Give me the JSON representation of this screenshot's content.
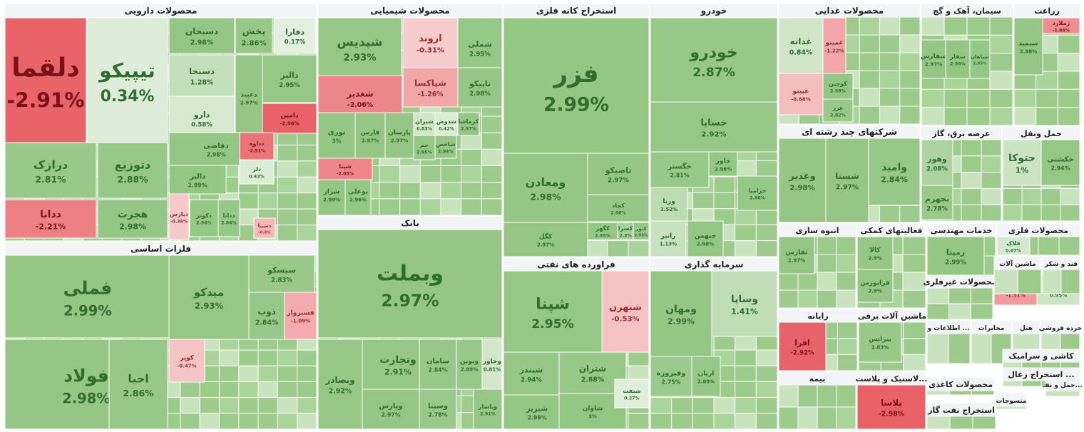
{
  "chart_data": {
    "type": "treemap",
    "metric": "daily change %",
    "sectors": [
      {
        "id": "pharma",
        "title": "محصولات دارویی",
        "items": [
          {
            "s": "دلقما",
            "v": -2.91
          },
          {
            "s": "تیپیکو",
            "v": 0.34
          },
          {
            "s": "دسبحان",
            "v": 2.98
          },
          {
            "s": "پخش",
            "v": 2.86
          },
          {
            "s": "دفارا",
            "v": 0.17
          },
          {
            "s": "دسبحا",
            "v": 1.28
          },
          {
            "s": "دارو",
            "v": 0.58
          },
          {
            "s": "دعبید",
            "v": 2.97
          },
          {
            "s": "دالبر",
            "v": 2.95
          },
          {
            "s": "دامین",
            "v": -2.96
          },
          {
            "s": "درازک",
            "v": 2.81
          },
          {
            "s": "دتوزیع",
            "v": 2.88
          },
          {
            "s": "دقاضی",
            "v": 2.98
          },
          {
            "s": "دالبر",
            "v": 2.99
          },
          {
            "s": "دداوه",
            "v": -2.51
          },
          {
            "s": "دجابر",
            "v": 2.93
          },
          {
            "s": "دکوثر",
            "v": 2.96
          },
          {
            "s": "ددانا",
            "v": -2.21
          },
          {
            "s": "هجرت",
            "v": 2.98
          },
          {
            "s": "دیارس",
            "v": -0.36
          },
          {
            "s": "دلر",
            "v": 0.43
          },
          {
            "s": "ددانا",
            "v": 2.86
          },
          {
            "s": "دسینا",
            "v": -0.8
          }
        ]
      },
      {
        "id": "chem",
        "title": "محصولات شیمیایی",
        "items": [
          {
            "s": "شپدیس",
            "v": 2.93
          },
          {
            "s": "اروند",
            "v": -0.31
          },
          {
            "s": "شملی",
            "v": 2.95
          },
          {
            "s": "شغدیر",
            "v": -2.06
          },
          {
            "s": "شپاکسا",
            "v": -1.26
          },
          {
            "s": "تاپیکو",
            "v": 2.98
          },
          {
            "s": "نوری",
            "v": 3
          },
          {
            "s": "فارس",
            "v": 2.97
          },
          {
            "s": "پارسان",
            "v": 2.97
          },
          {
            "s": "شیران",
            "v": 0.83
          },
          {
            "s": "شدوص",
            "v": 0.42
          },
          {
            "s": "کرماشا",
            "v": 2.97
          },
          {
            "s": "شراز",
            "v": 2.99
          },
          {
            "s": "بوعلی",
            "v": 2.96
          },
          {
            "s": "شاخص",
            "v": 2.94
          },
          {
            "s": "جم",
            "v": 2.95
          },
          {
            "s": "شپنا",
            "v": -2.05
          }
        ]
      },
      {
        "id": "bank",
        "title": "بانک",
        "items": [
          {
            "s": "وبملت",
            "v": 2.97
          },
          {
            "s": "وتجارت",
            "v": 2.91
          },
          {
            "s": "ساماں",
            "v": 2.84
          },
          {
            "s": "ونوین",
            "v": 2.89
          },
          {
            "s": "وخاور",
            "v": 0.81
          },
          {
            "s": "وبصادر",
            "v": 2.92
          },
          {
            "s": "وپارس",
            "v": 2.97
          },
          {
            "s": "وسینا",
            "v": 2.78
          },
          {
            "s": "وپاسار",
            "v": 2.91
          }
        ]
      },
      {
        "id": "metal",
        "title": "استخراج کانه فلزی",
        "items": [
          {
            "s": "فزر",
            "v": 2.99
          },
          {
            "s": "ومعادن",
            "v": 2.98
          },
          {
            "s": "تاصیکو",
            "v": 2.97
          },
          {
            "s": "کچاد",
            "v": 2.98
          },
          {
            "s": "کگل",
            "v": 2.97
          },
          {
            "s": "کگهر",
            "v": 2.95
          },
          {
            "s": "کسرا",
            "v": 2.3
          },
          {
            "s": "کنور",
            "v": 2.93
          }
        ]
      },
      {
        "id": "auto",
        "title": "خودرو",
        "items": [
          {
            "s": "خودرو",
            "v": 2.87
          },
          {
            "s": "خساپا",
            "v": 2.92
          },
          {
            "s": "خگستر",
            "v": 2.81
          },
          {
            "s": "خاور",
            "v": 2.96
          },
          {
            "s": "ورنا",
            "v": 1.52
          },
          {
            "s": "رانیر",
            "v": 1.13
          },
          {
            "s": "خبهمن",
            "v": 2.98
          },
          {
            "s": "خزامیا",
            "v": 2.96
          }
        ]
      },
      {
        "id": "food",
        "title": "محصولات غذایی",
        "items": [
          {
            "s": "غدانه",
            "v": 0.84
          },
          {
            "s": "غمینو",
            "v": -1.22
          },
          {
            "s": "غبینو",
            "v": -0.68
          },
          {
            "s": "کوچین",
            "v": 2.99
          },
          {
            "s": "غزر",
            "v": 2.82
          }
        ]
      },
      {
        "id": "cement",
        "title": "سیمان، آهک و گچ",
        "items": [
          {
            "s": "سفارس",
            "v": 2.97
          },
          {
            "s": "سفار",
            "v": 2.99
          },
          {
            "s": "سپاهان",
            "v": 2.95
          }
        ]
      },
      {
        "id": "agri",
        "title": "زراعت",
        "items": [
          {
            "s": "زملارد",
            "v": -1.86
          },
          {
            "s": "سیمید",
            "v": 2.98
          }
        ]
      },
      {
        "id": "multi",
        "title": "شرکتهای چند رشته ای",
        "items": [
          {
            "s": "وغدیر",
            "v": 2.98
          },
          {
            "s": "شستا",
            "v": 2.97
          },
          {
            "s": "وامید",
            "v": 2.84
          }
        ]
      },
      {
        "id": "power",
        "title": "عرضه برق، گاز",
        "items": [
          {
            "s": "وهور",
            "v": 2.08
          },
          {
            "s": "بجهرم",
            "v": 2.78
          }
        ]
      },
      {
        "id": "transport",
        "title": "حمل ونقل",
        "items": [
          {
            "s": "حتوکا",
            "v": 1
          },
          {
            "s": "حکشتی",
            "v": 2.94
          }
        ]
      },
      {
        "id": "basemetal",
        "title": "فلزات اساسی",
        "items": [
          {
            "s": "فملی",
            "v": 2.99
          },
          {
            "s": "میدکو",
            "v": 2.93
          },
          {
            "s": "سیسکو",
            "v": 2.83
          },
          {
            "s": "ذوب",
            "v": 2.84
          },
          {
            "s": "فسبزوار",
            "v": -1.09
          },
          {
            "s": "فولاد",
            "v": 2.98
          },
          {
            "s": "احیا",
            "v": 2.86
          },
          {
            "s": "کویر",
            "v": -0.47
          }
        ]
      },
      {
        "id": "refinery",
        "title": "فراورده های نفتی",
        "items": [
          {
            "s": "شپنا",
            "v": 2.95
          },
          {
            "s": "شبهرن",
            "v": -0.53
          },
          {
            "s": "شبندر",
            "v": 2.94
          },
          {
            "s": "شتران",
            "v": 2.88
          },
          {
            "s": "شبریز",
            "v": 2.99
          },
          {
            "s": "شاوان",
            "v": 3
          },
          {
            "s": "شنفت",
            "v": 0.27
          }
        ]
      },
      {
        "id": "invest",
        "title": "سرمایه گذاری",
        "items": [
          {
            "s": "ومهان",
            "v": 2.99
          },
          {
            "s": "وساپا",
            "v": 1.41
          },
          {
            "s": "وفیروزه",
            "v": 2.75
          },
          {
            "s": "اریان",
            "v": 2.89
          }
        ]
      },
      {
        "id": "mass",
        "title": "انبوه سازی",
        "items": [
          {
            "s": "ثفارس",
            "v": 2.97
          }
        ]
      },
      {
        "id": "support",
        "title": "فعالیتهای کمکی",
        "items": [
          {
            "s": "کالا",
            "v": 2.9
          },
          {
            "s": "فرابورس",
            "v": 2.9
          }
        ]
      },
      {
        "id": "eng",
        "title": "خدمات مهندسی",
        "items": [
          {
            "s": "رمپنا",
            "v": 2.99
          }
        ]
      },
      {
        "id": "it",
        "title": "رایانه",
        "items": [
          {
            "s": "افرا",
            "v": -2.92
          }
        ]
      },
      {
        "id": "electric",
        "title": "ماشین آلات برقی",
        "items": [
          {
            "s": "بترانس",
            "v": 2.83
          }
        ]
      },
      {
        "id": "insure",
        "title": "بیمه",
        "items": []
      },
      {
        "id": "plastic",
        "title": "لاستیک و پلاست...",
        "items": [
          {
            "s": "پلاسا",
            "v": -2.98
          }
        ]
      },
      {
        "id": "nonmetal",
        "title": "محصولات غیرفلزی",
        "items": [
          {
            "s": "کلاک",
            "v": -1.51
          },
          {
            "s": "کچار",
            "v": 0.95
          }
        ]
      },
      {
        "id": "machine",
        "title": "ماشین آلات",
        "items": []
      },
      {
        "id": "sugar",
        "title": "قند و شکر",
        "items": []
      },
      {
        "id": "metalprod",
        "title": "محصولات فلزی",
        "items": [
          {
            "s": "فلاک",
            "v": 0.67
          }
        ]
      },
      {
        "id": "telecom",
        "title": "اطلاعات و ...",
        "items": []
      },
      {
        "id": "comm",
        "title": "مخابرات",
        "items": []
      },
      {
        "id": "hotel",
        "title": "هتل",
        "items": []
      },
      {
        "id": "retail",
        "title": "خرده فروشی",
        "items": []
      },
      {
        "id": "ceramic",
        "title": "کاشی و سرامیک",
        "items": []
      },
      {
        "id": "coal",
        "title": "استخراج زغال ...",
        "items": []
      },
      {
        "id": "oilex",
        "title": "استخراج نفت گاز",
        "items": []
      },
      {
        "id": "paper",
        "title": "محصولات کاغذی",
        "items": []
      },
      {
        "id": "textile",
        "title": "منسوجات",
        "items": []
      },
      {
        "id": "other",
        "title": "سایر واسـ...",
        "items": []
      },
      {
        "id": "transport2",
        "title": "حمل و نقـ...",
        "items": []
      }
    ]
  }
}
